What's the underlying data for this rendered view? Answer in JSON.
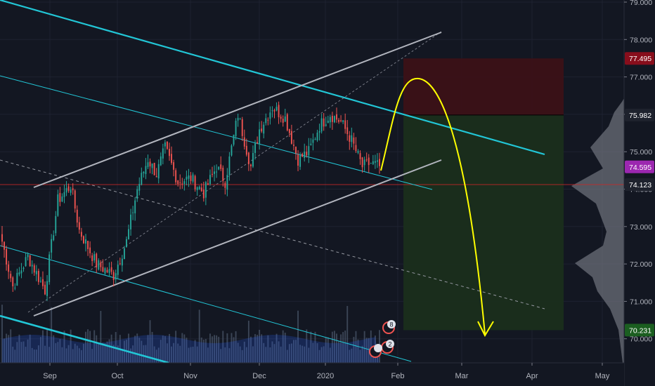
{
  "chart_data": {
    "type": "candlestick",
    "x_ticks": [
      "Sep",
      "Oct",
      "Nov",
      "Dec",
      "2020",
      "Feb",
      "Mar",
      "Apr",
      "May"
    ],
    "y_ticks": [
      "70.000",
      "71.000",
      "72.000",
      "73.000",
      "74.000",
      "75.000",
      "76.000",
      "77.000",
      "78.000",
      "79.000"
    ],
    "ylim": [
      69.7,
      79.1
    ],
    "price_tags": [
      {
        "value": "77.495",
        "color": "#880e1c"
      },
      {
        "value": "75.982",
        "color": "#1e222d"
      },
      {
        "value": "74.595",
        "color": "#9c27b0"
      },
      {
        "value": "74.123",
        "color": "#1e222d"
      },
      {
        "value": "70.231",
        "color": "#1b5e20"
      }
    ],
    "candle_anchors": {
      "dates_index": [
        0,
        5,
        12,
        20,
        26,
        32,
        36,
        44,
        52,
        58,
        63,
        68,
        72,
        76,
        82,
        88,
        94,
        100,
        104,
        110,
        116,
        120,
        126,
        132,
        138,
        143,
        148,
        153,
        158,
        163,
        168,
        172,
        176
      ],
      "close": [
        72.6,
        71.4,
        72.2,
        71.3,
        73.7,
        74.1,
        72.9,
        72.0,
        71.7,
        72.6,
        74.0,
        74.8,
        74.4,
        75.1,
        74.2,
        74.3,
        73.9,
        74.6,
        74.2,
        76.0,
        74.6,
        75.6,
        76.2,
        75.9,
        74.8,
        75.0,
        75.7,
        76.0,
        75.8,
        75.3,
        74.6,
        74.7,
        74.6
      ]
    },
    "volume_profile_color": "#787b86",
    "up_color": "#26a69a",
    "down_color": "#ef5350",
    "trend_color": "#22c6d6",
    "channel_color": "#b2b5be",
    "projection_color": "#ffff00",
    "stop_zone_color": "#3b1117",
    "target_zone_color": "#1a2e1c",
    "event_badges": [
      "8",
      "2"
    ]
  }
}
